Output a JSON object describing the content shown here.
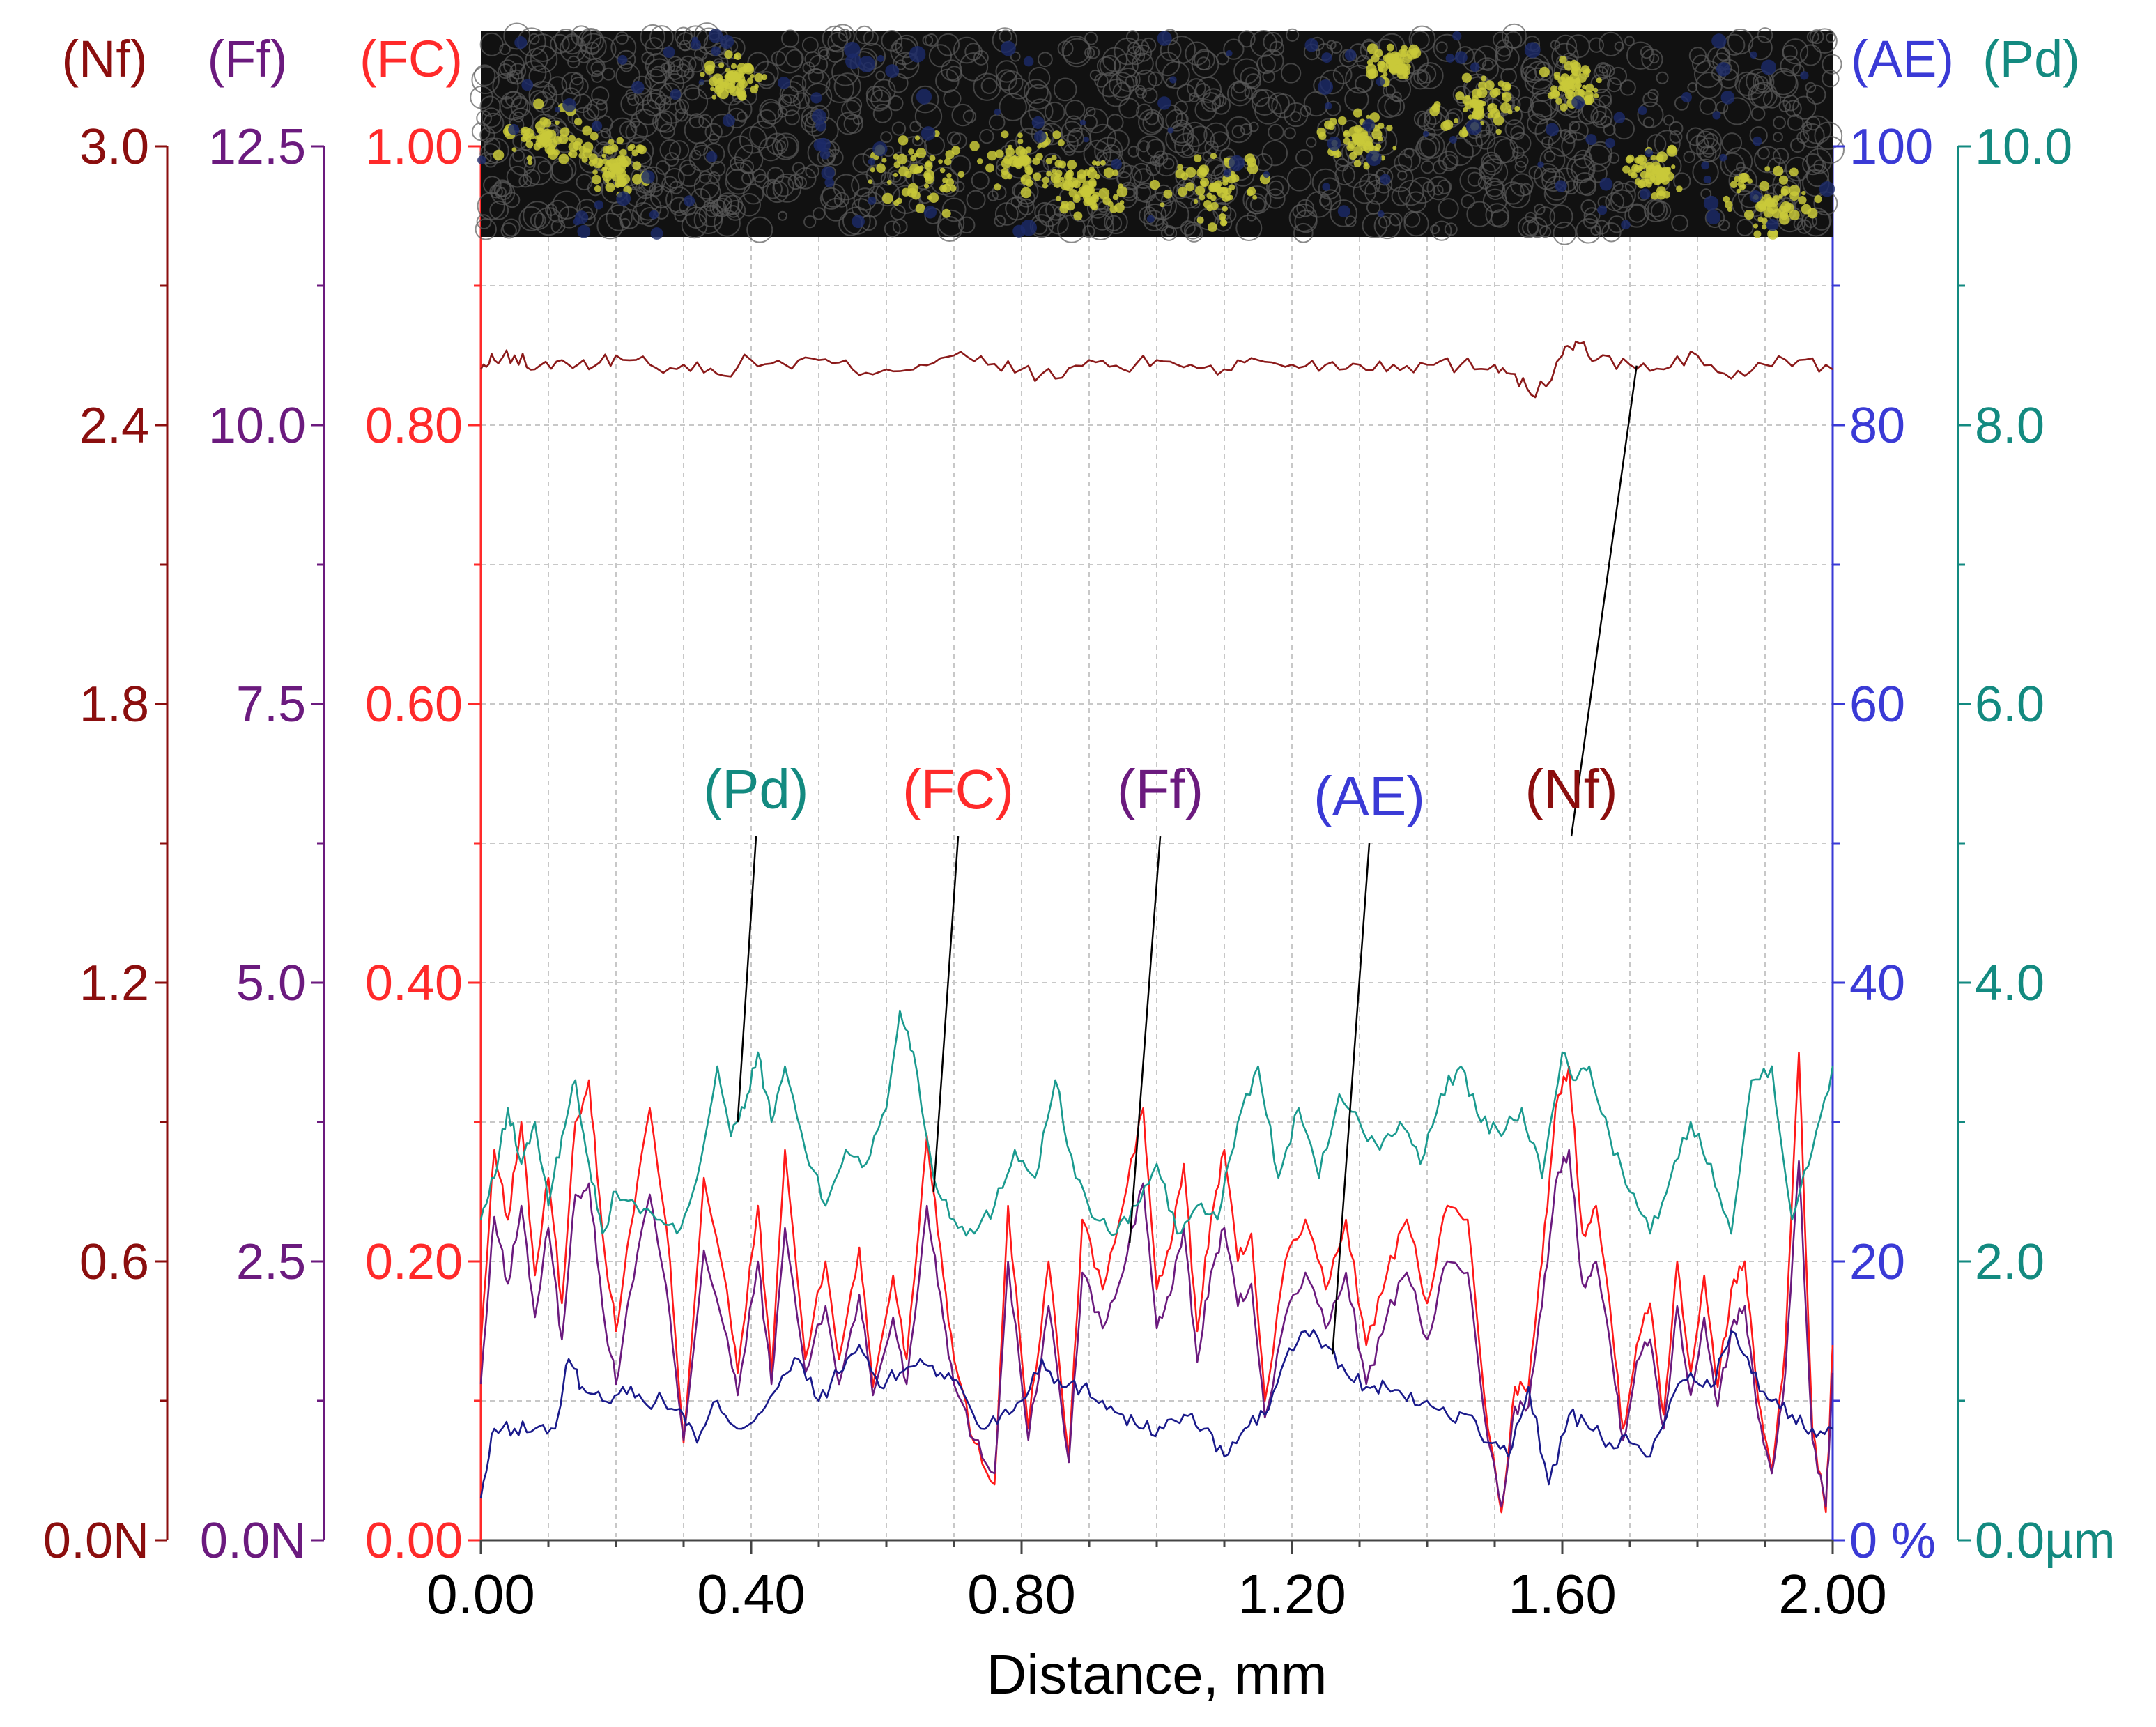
{
  "chart_data": {
    "type": "line",
    "xlabel": "Distance, mm",
    "xlim": [
      0.0,
      2.0
    ],
    "x_ticks": [
      "0.00",
      "0.40",
      "0.80",
      "1.20",
      "1.60",
      "2.00"
    ],
    "micrograph_strip": {
      "description": "optical micrograph of scratch track",
      "colors": [
        "#111111",
        "#c9c93a",
        "#1c2a6a"
      ]
    },
    "axes": [
      {
        "id": "nf",
        "header": "(Nf)",
        "color": "#8b0e0e",
        "ylim": [
          0.0,
          3.0
        ],
        "tick_labels": [
          "0.0N",
          "0.6",
          "1.2",
          "1.8",
          "2.4",
          "3.0"
        ],
        "unit": "N"
      },
      {
        "id": "ff",
        "header": "(Ff)",
        "color": "#6b1a7e",
        "ylim": [
          0.0,
          12.5
        ],
        "tick_labels": [
          "0.0N",
          "2.5",
          "5.0",
          "7.5",
          "10.0",
          "12.5"
        ],
        "unit": "N"
      },
      {
        "id": "fc",
        "header": "(FC)",
        "color": "#ff2a2a",
        "ylim": [
          0.0,
          1.0
        ],
        "tick_labels": [
          "0.00",
          "0.20",
          "0.40",
          "0.60",
          "0.80",
          "1.00"
        ],
        "unit": ""
      },
      {
        "id": "ae",
        "header": "(AE)",
        "color": "#3a3ad6",
        "ylim": [
          0,
          100
        ],
        "tick_labels": [
          "0 %",
          "20",
          "40",
          "60",
          "80",
          "100"
        ],
        "unit": "%"
      },
      {
        "id": "pd",
        "header": "(Pd)",
        "color": "#138a80",
        "ylim": [
          0.0,
          10.0
        ],
        "tick_labels": [
          "0.0µm",
          "2.0",
          "4.0",
          "6.0",
          "8.0",
          "10.0"
        ],
        "unit": "µm"
      }
    ],
    "series": [
      {
        "name": "(Nf)",
        "axis": "nf",
        "color": "#8b1a1a",
        "x": [
          0.0,
          0.02,
          0.05,
          0.08,
          0.12,
          0.16,
          0.2,
          0.25,
          0.3,
          0.35,
          0.4,
          0.45,
          0.5,
          0.55,
          0.6,
          0.65,
          0.7,
          0.75,
          0.8,
          0.85,
          0.9,
          0.95,
          1.0,
          1.05,
          1.1,
          1.15,
          1.2,
          1.25,
          1.3,
          1.35,
          1.4,
          1.45,
          1.5,
          1.53,
          1.56,
          1.6,
          1.62,
          1.65,
          1.7,
          1.75,
          1.8,
          1.85,
          1.9,
          1.95,
          2.0
        ],
        "values": [
          2.52,
          2.54,
          2.55,
          2.52,
          2.54,
          2.52,
          2.55,
          2.53,
          2.53,
          2.51,
          2.54,
          2.53,
          2.54,
          2.52,
          2.52,
          2.53,
          2.55,
          2.53,
          2.52,
          2.5,
          2.54,
          2.52,
          2.54,
          2.53,
          2.52,
          2.54,
          2.53,
          2.53,
          2.53,
          2.53,
          2.53,
          2.53,
          2.53,
          2.51,
          2.46,
          2.55,
          2.58,
          2.54,
          2.53,
          2.52,
          2.55,
          2.5,
          2.53,
          2.54,
          2.52
        ]
      },
      {
        "name": "(FC)",
        "axis": "fc",
        "color": "#ff1a1a",
        "x": [
          0.0,
          0.02,
          0.04,
          0.06,
          0.08,
          0.1,
          0.12,
          0.14,
          0.16,
          0.18,
          0.2,
          0.22,
          0.25,
          0.28,
          0.3,
          0.33,
          0.36,
          0.38,
          0.41,
          0.43,
          0.45,
          0.48,
          0.51,
          0.53,
          0.56,
          0.58,
          0.61,
          0.63,
          0.66,
          0.68,
          0.7,
          0.73,
          0.76,
          0.78,
          0.81,
          0.84,
          0.87,
          0.89,
          0.92,
          0.95,
          0.98,
          1.0,
          1.02,
          1.04,
          1.06,
          1.08,
          1.1,
          1.12,
          1.14,
          1.16,
          1.19,
          1.22,
          1.25,
          1.28,
          1.31,
          1.34,
          1.37,
          1.4,
          1.43,
          1.46,
          1.49,
          1.51,
          1.53,
          1.55,
          1.57,
          1.59,
          1.61,
          1.63,
          1.65,
          1.67,
          1.69,
          1.71,
          1.73,
          1.75,
          1.77,
          1.79,
          1.81,
          1.83,
          1.85,
          1.87,
          1.89,
          1.91,
          1.93,
          1.95,
          1.97,
          1.99,
          2.0
        ],
        "values": [
          0.14,
          0.28,
          0.23,
          0.3,
          0.19,
          0.26,
          0.17,
          0.3,
          0.33,
          0.22,
          0.15,
          0.22,
          0.31,
          0.2,
          0.07,
          0.26,
          0.19,
          0.12,
          0.24,
          0.12,
          0.28,
          0.13,
          0.2,
          0.13,
          0.21,
          0.11,
          0.19,
          0.13,
          0.29,
          0.21,
          0.13,
          0.07,
          0.04,
          0.24,
          0.08,
          0.2,
          0.06,
          0.23,
          0.18,
          0.24,
          0.31,
          0.18,
          0.21,
          0.27,
          0.15,
          0.23,
          0.28,
          0.2,
          0.22,
          0.1,
          0.2,
          0.23,
          0.18,
          0.23,
          0.14,
          0.19,
          0.23,
          0.17,
          0.24,
          0.23,
          0.08,
          0.02,
          0.11,
          0.11,
          0.2,
          0.31,
          0.34,
          0.22,
          0.24,
          0.17,
          0.08,
          0.14,
          0.17,
          0.09,
          0.2,
          0.12,
          0.19,
          0.11,
          0.18,
          0.2,
          0.1,
          0.05,
          0.14,
          0.35,
          0.08,
          0.02,
          0.14
        ]
      },
      {
        "name": "(Ff)",
        "axis": "ff",
        "color": "#6b1a7e",
        "x": [
          0.0,
          0.02,
          0.04,
          0.06,
          0.08,
          0.1,
          0.12,
          0.14,
          0.16,
          0.18,
          0.2,
          0.22,
          0.25,
          0.28,
          0.3,
          0.33,
          0.36,
          0.38,
          0.41,
          0.43,
          0.45,
          0.48,
          0.51,
          0.53,
          0.56,
          0.58,
          0.61,
          0.63,
          0.66,
          0.68,
          0.7,
          0.73,
          0.76,
          0.78,
          0.81,
          0.84,
          0.87,
          0.89,
          0.92,
          0.95,
          0.98,
          1.0,
          1.02,
          1.04,
          1.06,
          1.08,
          1.1,
          1.12,
          1.14,
          1.16,
          1.19,
          1.22,
          1.25,
          1.28,
          1.31,
          1.34,
          1.37,
          1.4,
          1.43,
          1.46,
          1.49,
          1.51,
          1.53,
          1.55,
          1.57,
          1.59,
          1.61,
          1.63,
          1.65,
          1.67,
          1.69,
          1.71,
          1.73,
          1.75,
          1.77,
          1.79,
          1.81,
          1.83,
          1.85,
          1.87,
          1.89,
          1.91,
          1.93,
          1.95,
          1.97,
          1.99,
          2.0
        ],
        "values": [
          1.4,
          2.9,
          2.3,
          3.0,
          2.0,
          2.8,
          1.8,
          3.1,
          3.2,
          2.1,
          1.4,
          2.2,
          3.1,
          2.0,
          0.9,
          2.6,
          1.9,
          1.3,
          2.5,
          1.4,
          2.8,
          1.5,
          2.1,
          1.4,
          2.2,
          1.3,
          2.0,
          1.4,
          3.0,
          2.2,
          1.4,
          0.9,
          0.6,
          2.5,
          0.9,
          2.1,
          0.7,
          2.4,
          1.9,
          2.4,
          3.2,
          1.9,
          2.2,
          2.8,
          1.6,
          2.4,
          2.8,
          2.1,
          2.3,
          1.1,
          2.0,
          2.4,
          1.9,
          2.4,
          1.4,
          2.0,
          2.4,
          1.8,
          2.5,
          2.4,
          0.9,
          0.3,
          1.2,
          1.2,
          2.1,
          3.2,
          3.5,
          2.3,
          2.5,
          1.8,
          0.9,
          1.6,
          1.8,
          1.0,
          2.1,
          1.3,
          2.0,
          1.2,
          1.9,
          2.1,
          1.1,
          0.6,
          1.5,
          3.4,
          0.9,
          0.3,
          1.5
        ]
      },
      {
        "name": "(AE)",
        "axis": "ae",
        "color": "#1a1a8b",
        "x": [
          0.0,
          0.02,
          0.05,
          0.08,
          0.11,
          0.13,
          0.15,
          0.18,
          0.21,
          0.24,
          0.27,
          0.3,
          0.32,
          0.35,
          0.38,
          0.41,
          0.44,
          0.47,
          0.5,
          0.53,
          0.56,
          0.59,
          0.62,
          0.65,
          0.68,
          0.71,
          0.74,
          0.77,
          0.8,
          0.83,
          0.86,
          0.89,
          0.92,
          0.95,
          0.98,
          1.01,
          1.04,
          1.07,
          1.1,
          1.13,
          1.16,
          1.19,
          1.22,
          1.25,
          1.28,
          1.31,
          1.34,
          1.37,
          1.4,
          1.43,
          1.46,
          1.49,
          1.52,
          1.55,
          1.58,
          1.61,
          1.64,
          1.67,
          1.7,
          1.73,
          1.76,
          1.79,
          1.82,
          1.85,
          1.88,
          1.91,
          1.94,
          1.97,
          2.0
        ],
        "values": [
          3,
          8,
          8,
          8,
          8,
          13,
          11,
          10,
          11,
          10,
          10,
          9,
          7,
          10,
          8,
          9,
          11,
          13,
          10,
          12,
          14,
          11,
          12,
          13,
          12,
          11,
          8,
          9,
          10,
          13,
          11,
          11,
          10,
          9,
          8,
          8,
          9,
          8,
          6,
          8,
          9,
          13,
          15,
          14,
          12,
          11,
          11,
          10,
          10,
          9,
          9,
          7,
          6,
          11,
          4,
          9,
          8,
          7,
          7,
          6,
          10,
          12,
          11,
          15,
          12,
          10,
          9,
          8,
          8
        ]
      },
      {
        "name": "(Pd)",
        "axis": "pd",
        "color": "#1a9a8f",
        "x": [
          0.0,
          0.02,
          0.04,
          0.06,
          0.08,
          0.1,
          0.12,
          0.14,
          0.16,
          0.18,
          0.2,
          0.23,
          0.26,
          0.29,
          0.32,
          0.35,
          0.37,
          0.39,
          0.41,
          0.43,
          0.45,
          0.48,
          0.51,
          0.54,
          0.57,
          0.6,
          0.62,
          0.64,
          0.67,
          0.7,
          0.73,
          0.76,
          0.79,
          0.82,
          0.85,
          0.88,
          0.91,
          0.94,
          0.97,
          1.0,
          1.03,
          1.06,
          1.09,
          1.12,
          1.15,
          1.18,
          1.21,
          1.24,
          1.27,
          1.3,
          1.33,
          1.36,
          1.39,
          1.42,
          1.45,
          1.48,
          1.51,
          1.54,
          1.57,
          1.6,
          1.62,
          1.64,
          1.67,
          1.7,
          1.73,
          1.76,
          1.79,
          1.82,
          1.85,
          1.88,
          1.91,
          1.94,
          1.97,
          2.0
        ],
        "values": [
          2.3,
          2.6,
          3.1,
          2.7,
          3.0,
          2.4,
          2.9,
          3.3,
          2.7,
          2.2,
          2.5,
          2.4,
          2.3,
          2.2,
          2.6,
          3.4,
          2.9,
          3.1,
          3.5,
          3.0,
          3.4,
          2.8,
          2.4,
          2.8,
          2.7,
          3.1,
          3.8,
          3.5,
          2.6,
          2.3,
          2.2,
          2.4,
          2.8,
          2.6,
          3.3,
          2.6,
          2.3,
          2.2,
          2.4,
          2.7,
          2.2,
          2.4,
          2.3,
          3.0,
          3.4,
          2.6,
          3.1,
          2.6,
          3.2,
          3.0,
          2.8,
          3.0,
          2.7,
          3.2,
          3.4,
          3.0,
          2.9,
          3.1,
          2.6,
          3.5,
          3.3,
          3.4,
          2.9,
          2.5,
          2.2,
          2.6,
          3.0,
          2.7,
          2.2,
          3.3,
          3.4,
          2.3,
          2.8,
          3.4
        ]
      }
    ],
    "callouts": [
      {
        "label": "(Pd)",
        "series": "pd",
        "at_x": 0.38
      },
      {
        "label": "(FC)",
        "series": "fc",
        "at_x": 0.67
      },
      {
        "label": "(Ff)",
        "series": "ff",
        "at_x": 0.96
      },
      {
        "label": "(AE)",
        "series": "ae",
        "at_x": 1.26
      },
      {
        "label": "(Nf)",
        "series": "nf",
        "at_x": 1.71
      }
    ]
  }
}
